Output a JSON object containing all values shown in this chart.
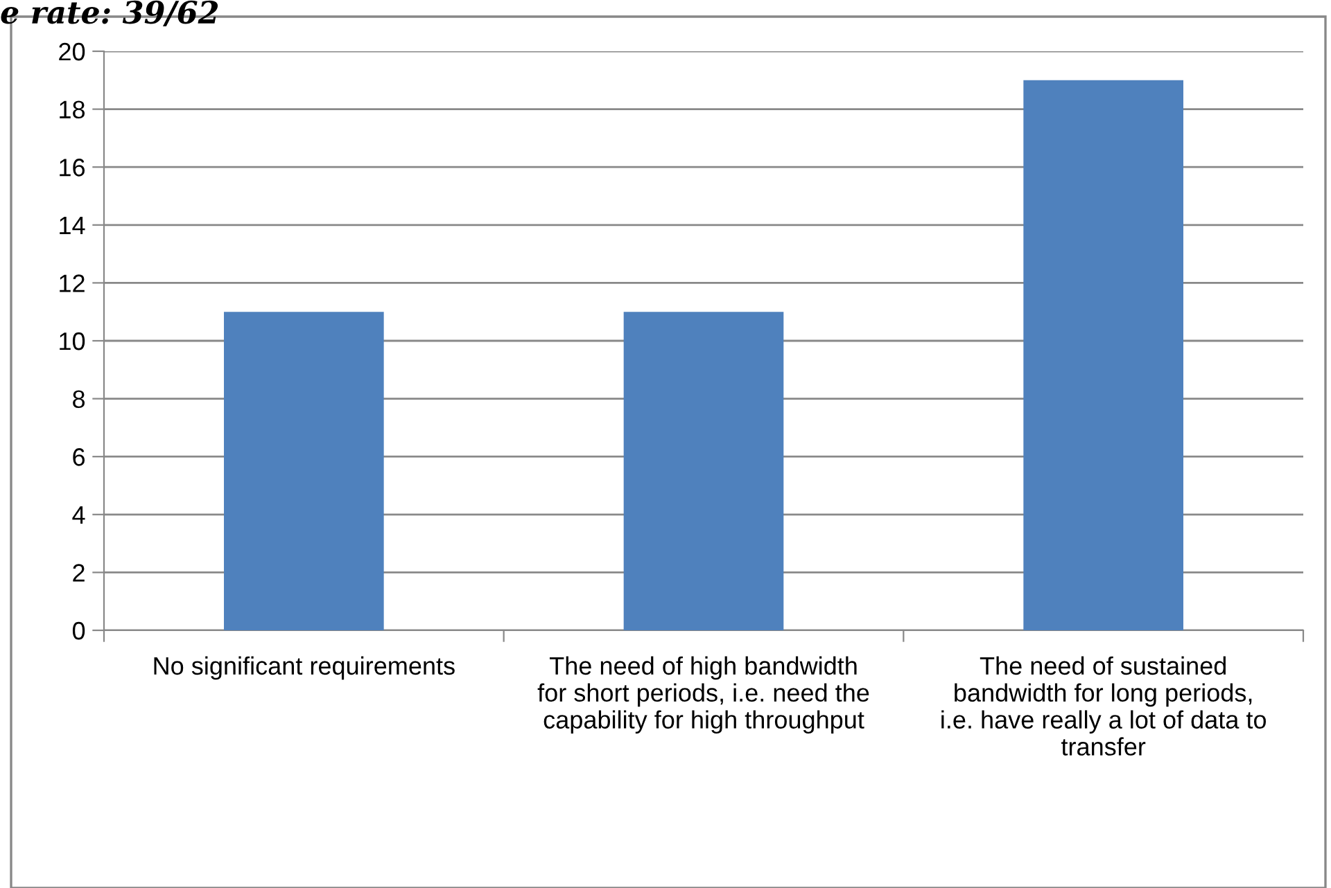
{
  "chart_data": {
    "type": "bar",
    "title": "e rate: 39/62",
    "categories": [
      "No significant requirements",
      "The need of high bandwidth for short periods, i.e. need the capability for high throughput",
      "The need of sustained bandwidth for long periods, i.e. have really a lot of data to transfer"
    ],
    "values": [
      11,
      11,
      19
    ],
    "color": "#4f81bd",
    "ylim": [
      0,
      20
    ],
    "yticks": [
      0,
      2,
      4,
      6,
      8,
      10,
      12,
      14,
      16,
      18,
      20
    ],
    "grid": "y",
    "legend": false
  }
}
